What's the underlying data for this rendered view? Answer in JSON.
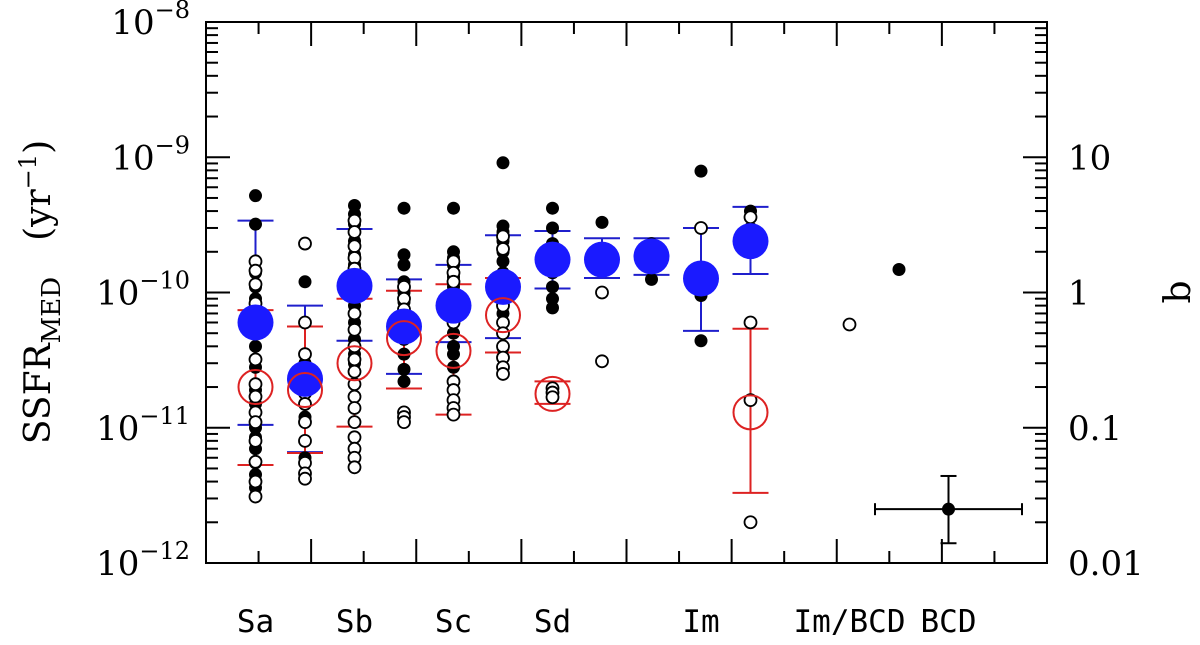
{
  "chart_data": {
    "type": "scatter",
    "y_scale": "log",
    "ylim": [
      1e-12,
      1e-08
    ],
    "y_ticks": [
      {
        "value": 1e-12,
        "base": "10",
        "exp": "−12"
      },
      {
        "value": 1e-11,
        "base": "10",
        "exp": "−11"
      },
      {
        "value": 1e-10,
        "base": "10",
        "exp": "−10"
      },
      {
        "value": 1e-09,
        "base": "10",
        "exp": "−9"
      },
      {
        "value": 1e-08,
        "base": "10",
        "exp": "−8"
      }
    ],
    "ylabel": {
      "main": "SSFR",
      "sub": "MED",
      "unit": "(yr",
      "unit_exp": "−1",
      "unit_close": ")"
    },
    "y2label": "b",
    "y2_ticks": [
      {
        "value": 10,
        "label": "10"
      },
      {
        "value": 1,
        "label": "1"
      },
      {
        "value": 0.1,
        "label": "0.1"
      },
      {
        "value": 0.01,
        "label": "0.01"
      }
    ],
    "y2_scale": "b = SSFR / 1e-10",
    "xlim": [
      -0.5,
      7.5
    ],
    "categories": [
      {
        "label": "Sa",
        "x": 0
      },
      {
        "label": "Sb",
        "x": 2
      },
      {
        "label": "Sc",
        "x": 4
      },
      {
        "label": "Sd",
        "x": 6
      },
      {
        "label": "Im",
        "x": 9
      },
      {
        "label": "Im/BCD",
        "x": 12
      },
      {
        "label": "BCD",
        "x": 14
      }
    ],
    "x_minor_count": 16,
    "series": [
      {
        "marker": "filled-black",
        "points": [
          [
            0,
            5.2e-10
          ],
          [
            0,
            3.2e-10
          ],
          [
            0,
            1.4e-10
          ],
          [
            0,
            1.1e-10
          ],
          [
            0,
            9e-11
          ],
          [
            0,
            7e-11
          ],
          [
            0,
            6e-11
          ],
          [
            0,
            4e-11
          ],
          [
            0,
            2.8e-11
          ],
          [
            0,
            1.9e-11
          ],
          [
            0,
            1.5e-11
          ],
          [
            0,
            1e-11
          ],
          [
            0,
            8.5e-12
          ],
          [
            0,
            7e-12
          ],
          [
            0,
            5.5e-12
          ],
          [
            0,
            4.5e-12
          ],
          [
            0,
            3.6e-12
          ],
          [
            1,
            1.2e-10
          ],
          [
            1,
            3e-11
          ],
          [
            1,
            1.9e-11
          ],
          [
            1,
            1.2e-11
          ],
          [
            1,
            6e-12
          ],
          [
            2,
            4.4e-10
          ],
          [
            2,
            3.8e-10
          ],
          [
            2,
            3.2e-10
          ],
          [
            2,
            2.4e-10
          ],
          [
            2,
            1.9e-10
          ],
          [
            2,
            1.6e-10
          ],
          [
            2,
            1.3e-10
          ],
          [
            2,
            1e-10
          ],
          [
            2,
            8e-11
          ],
          [
            2,
            6e-11
          ],
          [
            2,
            4.5e-11
          ],
          [
            2,
            3.5e-11
          ],
          [
            2,
            3e-11
          ],
          [
            3,
            4.2e-10
          ],
          [
            3,
            1.9e-10
          ],
          [
            3,
            1.6e-10
          ],
          [
            3,
            1.2e-10
          ],
          [
            3,
            1e-10
          ],
          [
            3,
            8.5e-11
          ],
          [
            3,
            7e-11
          ],
          [
            3,
            5.5e-11
          ],
          [
            3,
            4.5e-11
          ],
          [
            3,
            3.5e-11
          ],
          [
            3,
            2.7e-11
          ],
          [
            3,
            2.2e-11
          ],
          [
            4,
            4.2e-10
          ],
          [
            4,
            2e-10
          ],
          [
            4,
            1.8e-10
          ],
          [
            4,
            1.6e-10
          ],
          [
            4,
            1.3e-10
          ],
          [
            4,
            1.1e-10
          ],
          [
            4,
            9e-11
          ],
          [
            4,
            7.5e-11
          ],
          [
            4,
            6e-11
          ],
          [
            4,
            5e-11
          ],
          [
            4,
            4e-11
          ],
          [
            4,
            3.5e-11
          ],
          [
            4,
            2.8e-11
          ],
          [
            5,
            9.1e-10
          ],
          [
            5,
            3.1e-10
          ],
          [
            5,
            2.8e-10
          ],
          [
            5,
            2.4e-10
          ],
          [
            5,
            2e-10
          ],
          [
            5,
            1.7e-10
          ],
          [
            5,
            1.4e-10
          ],
          [
            5,
            1.1e-10
          ],
          [
            5,
            9e-11
          ],
          [
            5,
            7e-11
          ],
          [
            5,
            6e-11
          ],
          [
            5,
            5e-11
          ],
          [
            5,
            3.9e-11
          ],
          [
            5,
            3.3e-11
          ],
          [
            6,
            4.2e-10
          ],
          [
            6,
            3e-10
          ],
          [
            6,
            2.3e-10
          ],
          [
            6,
            1.8e-10
          ],
          [
            6,
            1.4e-10
          ],
          [
            6,
            1.1e-10
          ],
          [
            6,
            9e-11
          ],
          [
            6,
            7.7e-11
          ],
          [
            7,
            3.3e-10
          ],
          [
            7,
            2e-10
          ],
          [
            7,
            1.5e-10
          ],
          [
            8,
            2.3e-10
          ],
          [
            8,
            1.9e-10
          ],
          [
            8,
            1.6e-10
          ],
          [
            8,
            1.25e-10
          ],
          [
            9,
            7.9e-10
          ],
          [
            9,
            9.5e-11
          ],
          [
            9,
            4.4e-11
          ],
          [
            10,
            4e-10
          ],
          [
            10,
            3e-10
          ],
          [
            10,
            1.6e-11
          ],
          [
            13,
            1.48e-10
          ],
          [
            14,
            2.5e-12
          ]
        ]
      },
      {
        "marker": "open-black",
        "points": [
          [
            0,
            1.7e-10
          ],
          [
            0,
            1.45e-10
          ],
          [
            0,
            1.15e-10
          ],
          [
            0,
            8.3e-11
          ],
          [
            0,
            5.1e-11
          ],
          [
            0,
            3.2e-11
          ],
          [
            0,
            2.1e-11
          ],
          [
            0,
            1.7e-11
          ],
          [
            0,
            1.3e-11
          ],
          [
            0,
            1.1e-11
          ],
          [
            0,
            8e-12
          ],
          [
            0,
            5.6e-12
          ],
          [
            0,
            4e-12
          ],
          [
            0,
            3.1e-12
          ],
          [
            1,
            2.3e-10
          ],
          [
            1,
            6e-11
          ],
          [
            1,
            3.5e-11
          ],
          [
            1,
            2.5e-11
          ],
          [
            1,
            1.8e-11
          ],
          [
            1,
            1.5e-11
          ],
          [
            1,
            1.1e-11
          ],
          [
            1,
            8e-12
          ],
          [
            1,
            5.5e-12
          ],
          [
            1,
            4.6e-12
          ],
          [
            1,
            4.2e-12
          ],
          [
            2,
            3.4e-10
          ],
          [
            2,
            2.8e-10
          ],
          [
            2,
            2.2e-10
          ],
          [
            2,
            1.8e-10
          ],
          [
            2,
            1.5e-10
          ],
          [
            2,
            1.2e-10
          ],
          [
            2,
            9.5e-11
          ],
          [
            2,
            7e-11
          ],
          [
            2,
            5.3e-11
          ],
          [
            2,
            4e-11
          ],
          [
            2,
            3.2e-11
          ],
          [
            2,
            2.6e-11
          ],
          [
            2,
            2.1e-11
          ],
          [
            2,
            1.7e-11
          ],
          [
            2,
            1.4e-11
          ],
          [
            2,
            1.1e-11
          ],
          [
            2,
            8.5e-12
          ],
          [
            2,
            7e-12
          ],
          [
            2,
            6e-12
          ],
          [
            2,
            5.1e-12
          ],
          [
            3,
            1.1e-10
          ],
          [
            3,
            9e-11
          ],
          [
            3,
            7.5e-11
          ],
          [
            3,
            6e-11
          ],
          [
            3,
            4.9e-11
          ],
          [
            3,
            1.3e-11
          ],
          [
            3,
            1.2e-11
          ],
          [
            3,
            1.1e-11
          ],
          [
            4,
            1.7e-10
          ],
          [
            4,
            1.4e-10
          ],
          [
            4,
            1.2e-10
          ],
          [
            4,
            6e-11
          ],
          [
            4,
            2.2e-11
          ],
          [
            4,
            1.9e-11
          ],
          [
            4,
            1.6e-11
          ],
          [
            4,
            1.4e-11
          ],
          [
            4,
            1.25e-11
          ],
          [
            5,
            2.6e-10
          ],
          [
            5,
            2.1e-10
          ],
          [
            5,
            1.3e-10
          ],
          [
            5,
            9e-11
          ],
          [
            5,
            8e-11
          ],
          [
            5,
            6e-11
          ],
          [
            5,
            5e-11
          ],
          [
            5,
            4e-11
          ],
          [
            5,
            3.3e-11
          ],
          [
            5,
            2.8e-11
          ],
          [
            5,
            2.5e-11
          ],
          [
            6,
            1.96e-11
          ],
          [
            6,
            1.82e-11
          ],
          [
            6,
            1.68e-11
          ],
          [
            7,
            1e-10
          ],
          [
            7,
            3.1e-11
          ],
          [
            9,
            3e-10
          ],
          [
            9,
            1.5e-10
          ],
          [
            10,
            3.6e-10
          ],
          [
            10,
            6e-11
          ],
          [
            10,
            1.6e-11
          ],
          [
            10,
            2e-12
          ],
          [
            12,
            5.8e-11
          ]
        ]
      },
      {
        "marker": "filled-blue-large",
        "points": [
          [
            0,
            6e-11
          ],
          [
            1,
            2.3e-11
          ],
          [
            2,
            1.12e-10
          ],
          [
            3,
            5.6e-11
          ],
          [
            4,
            8e-11
          ],
          [
            5,
            1.1e-10
          ],
          [
            6,
            1.75e-10
          ],
          [
            7,
            1.75e-10
          ],
          [
            8,
            1.85e-10
          ],
          [
            9,
            1.27e-10
          ],
          [
            10,
            2.4e-10
          ]
        ]
      },
      {
        "marker": "open-red-large",
        "points": [
          [
            0,
            2e-11
          ],
          [
            1,
            1.9e-11
          ],
          [
            2,
            3e-11
          ],
          [
            3,
            4.6e-11
          ],
          [
            4,
            3.7e-11
          ],
          [
            5,
            6.8e-11
          ],
          [
            6,
            1.78e-11
          ],
          [
            10,
            1.3e-11
          ]
        ]
      }
    ],
    "errorbars": {
      "blue": [
        {
          "x": 0,
          "lo": 1.05e-11,
          "hi": 3.4e-10
        },
        {
          "x": 1,
          "lo": 6.6e-12,
          "hi": 8e-11
        },
        {
          "x": 2,
          "lo": 4.4e-11,
          "hi": 2.95e-10
        },
        {
          "x": 3,
          "lo": 2.5e-11,
          "hi": 1.25e-10
        },
        {
          "x": 4,
          "lo": 4.3e-11,
          "hi": 1.6e-10
        },
        {
          "x": 5,
          "lo": 4.6e-11,
          "hi": 2.65e-10
        },
        {
          "x": 6,
          "lo": 1.07e-10,
          "hi": 2.85e-10
        },
        {
          "x": 7,
          "lo": 1.28e-10,
          "hi": 2.52e-10
        },
        {
          "x": 8,
          "lo": 1.35e-10,
          "hi": 2.52e-10
        },
        {
          "x": 9,
          "lo": 5.2e-11,
          "hi": 3e-10
        },
        {
          "x": 10,
          "lo": 1.37e-10,
          "hi": 4.3e-10
        }
      ],
      "red": [
        {
          "x": 0,
          "lo": 5.3e-12,
          "hi": 7.4e-11
        },
        {
          "x": 1,
          "lo": 6.5e-12,
          "hi": 5.6e-11
        },
        {
          "x": 2,
          "lo": 1.02e-11,
          "hi": 9e-11
        },
        {
          "x": 3,
          "lo": 1.95e-11,
          "hi": 1.03e-10
        },
        {
          "x": 4,
          "lo": 1.25e-11,
          "hi": 1.15e-10
        },
        {
          "x": 5,
          "lo": 3.6e-11,
          "hi": 1.28e-10
        },
        {
          "x": 6,
          "lo": 1.5e-11,
          "hi": 2.2e-11
        },
        {
          "x": 10,
          "lo": 3.3e-12,
          "hi": 5.4e-11
        }
      ],
      "black_cross": {
        "x": 14,
        "y": 2.5e-12,
        "xlo": 13,
        "xhi": 15,
        "ylo": 1.4e-12,
        "yhi": 4.4e-12
      }
    }
  }
}
